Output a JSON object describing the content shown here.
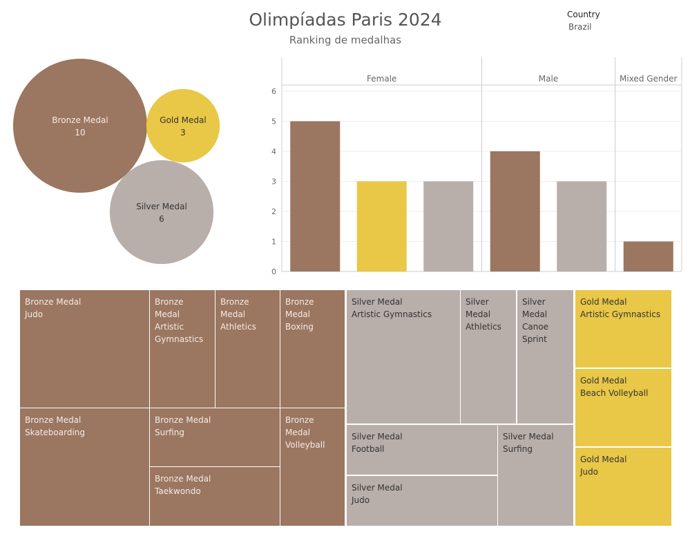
{
  "header": {
    "title": "Olimpíadas Paris 2024",
    "subtitle": "Ranking de medalhas",
    "filter_label": "Country",
    "filter_value": "Brazil"
  },
  "colors": {
    "bronze": "#9b7660",
    "gold": "#e9c747",
    "silver": "#b8aeaa",
    "bronze_text": "#f4ece6",
    "gold_text": "#333333",
    "silver_text": "#333333"
  },
  "chart_data": [
    {
      "type": "bubble",
      "items": [
        {
          "medal": "Bronze Medal",
          "value": 10,
          "color_key": "bronze"
        },
        {
          "medal": "Gold Medal",
          "value": 3,
          "color_key": "gold"
        },
        {
          "medal": "Silver Medal",
          "value": 6,
          "color_key": "silver"
        }
      ]
    },
    {
      "type": "bar",
      "panels": [
        {
          "label": "Female",
          "bars": [
            {
              "medal": "Bronze Medal",
              "value": 5,
              "color_key": "bronze"
            },
            {
              "medal": "Gold Medal",
              "value": 3,
              "color_key": "gold"
            },
            {
              "medal": "Silver Medal",
              "value": 3,
              "color_key": "silver"
            }
          ]
        },
        {
          "label": "Male",
          "bars": [
            {
              "medal": "Bronze Medal",
              "value": 4,
              "color_key": "bronze"
            },
            {
              "medal": "Silver Medal",
              "value": 3,
              "color_key": "silver"
            }
          ]
        },
        {
          "label": "Mixed Gender",
          "bars": [
            {
              "medal": "Bronze Medal",
              "value": 1,
              "color_key": "bronze"
            }
          ]
        }
      ],
      "ylim": [
        0,
        6
      ],
      "y_ticks": [
        "0",
        "1",
        "2",
        "3",
        "4",
        "5",
        "6"
      ],
      "grid": true
    },
    {
      "type": "treemap",
      "tiles": [
        {
          "medal": "Bronze Medal",
          "sport": "Judo",
          "color_key": "bronze"
        },
        {
          "medal": "Bronze Medal",
          "sport": "Artistic\nGymnastics",
          "color_key": "bronze"
        },
        {
          "medal": "Bronze Medal",
          "sport": "Athletics",
          "color_key": "bronze"
        },
        {
          "medal": "Bronze Medal",
          "sport": "Boxing",
          "color_key": "bronze"
        },
        {
          "medal": "Bronze Medal",
          "sport": "Skateboarding",
          "color_key": "bronze"
        },
        {
          "medal": "Bronze Medal",
          "sport": "Surfing",
          "color_key": "bronze"
        },
        {
          "medal": "Bronze Medal",
          "sport": "Taekwondo",
          "color_key": "bronze"
        },
        {
          "medal": "Bronze Medal",
          "sport": "Volleyball",
          "color_key": "bronze"
        },
        {
          "medal": "Silver Medal",
          "sport": "Artistic Gymnastics",
          "color_key": "silver"
        },
        {
          "medal": "Silver\nMedal",
          "sport": "Athletics",
          "color_key": "silver"
        },
        {
          "medal": "Silver\nMedal",
          "sport": "Canoe\nSprint",
          "color_key": "silver"
        },
        {
          "medal": "Silver Medal",
          "sport": "Football",
          "color_key": "silver"
        },
        {
          "medal": "Silver Medal",
          "sport": "Surfing",
          "color_key": "silver"
        },
        {
          "medal": "Silver Medal",
          "sport": "Judo",
          "color_key": "silver"
        },
        {
          "medal": "Gold Medal",
          "sport": "Artistic Gymnastics",
          "color_key": "gold"
        },
        {
          "medal": "Gold Medal",
          "sport": "Beach Volleyball",
          "color_key": "gold"
        },
        {
          "medal": "Gold Medal",
          "sport": "Judo",
          "color_key": "gold"
        }
      ]
    }
  ]
}
